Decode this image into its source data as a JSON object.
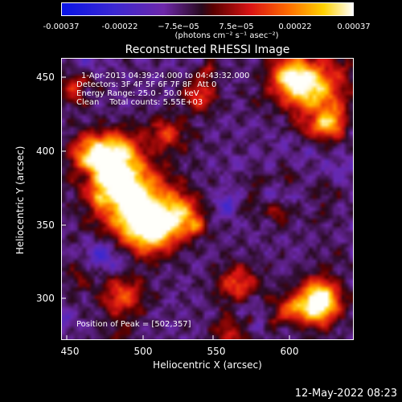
{
  "colorbar": {
    "ticks": [
      "-0.00037",
      "-0.00022",
      "−7.5e−05",
      "7.5e−05",
      "0.00022",
      "0.00037"
    ],
    "unit": "(photons cm⁻² s⁻¹ asec⁻²)"
  },
  "title": "Reconstructed RHESSI Image",
  "annotations": {
    "time": "1-Apr-2013 04:39:24.000 to 04:43:32.000",
    "detectors": "Detectors: 3F 4F 5F 6F 7F 8F  Att 0",
    "energy": "Energy Range: 25.0 - 50.0 keV",
    "clean": "Clean    Total counts: 5.55E+03",
    "peak": "Position of Peak = [502,357]"
  },
  "axes": {
    "xlabel": "Heliocentric X (arcsec)",
    "ylabel": "Heliocentric Y (arcsec)",
    "xticks": [
      "450",
      "500",
      "550",
      "600"
    ],
    "yticks": [
      "450",
      "400",
      "350",
      "300"
    ]
  },
  "timestamp": "12-May-2022 08:23",
  "chart_data": {
    "type": "heatmap",
    "title": "Reconstructed RHESSI Image",
    "xlabel": "Heliocentric X (arcsec)",
    "ylabel": "Heliocentric Y (arcsec)",
    "xlim": [
      442,
      634
    ],
    "ylim": [
      270,
      459
    ],
    "xticks": [
      450,
      500,
      550,
      600
    ],
    "yticks": [
      300,
      350,
      400,
      450
    ],
    "colorbar_range": [
      -0.00037,
      0.00037
    ],
    "colormap": "blue-purple-red-orange-yellow-white",
    "peak_position": [
      502,
      357
    ]
  }
}
